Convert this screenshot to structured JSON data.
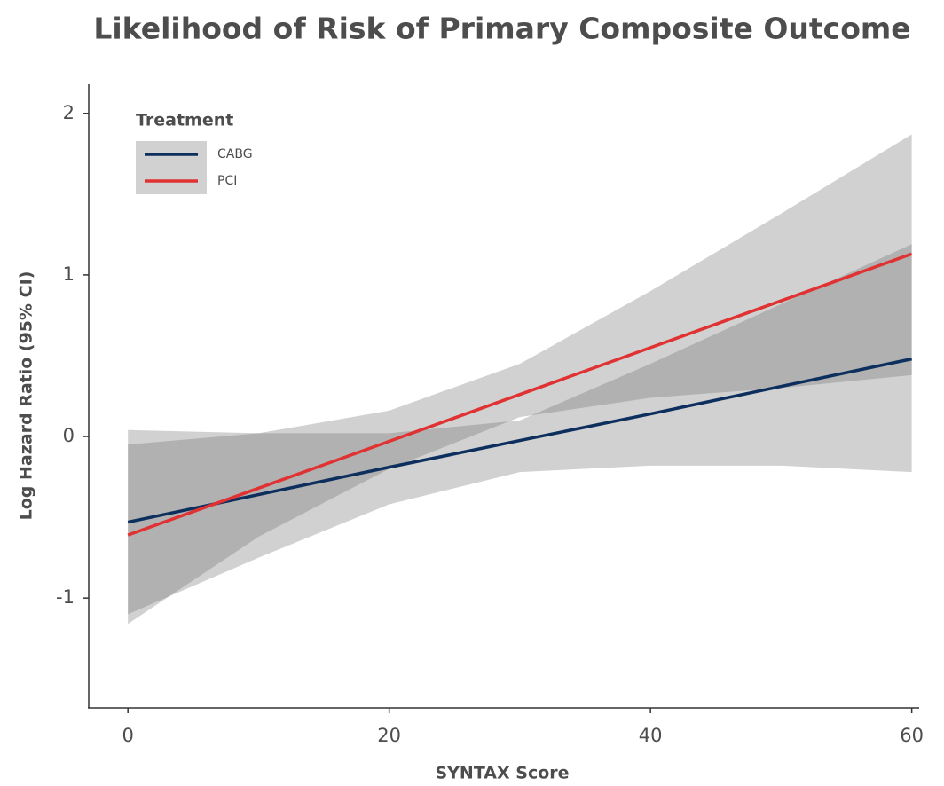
{
  "chart_data": {
    "type": "line",
    "title": "Likelihood of Risk of Primary Composite Outcome",
    "x_label": "SYNTAX Score",
    "y_label": "Log Hazard Ratio (95% CI)",
    "legend_title": "Treatment",
    "legend": "top-left",
    "x": [
      0,
      10,
      20,
      30,
      40,
      50,
      60
    ],
    "series": [
      {
        "name": "CABG",
        "color": "#0d2f5e",
        "values": [
          -0.53,
          -0.36,
          -0.19,
          -0.025,
          0.14,
          0.31,
          0.48
        ],
        "lower": [
          -1.1,
          -0.75,
          -0.42,
          -0.22,
          -0.18,
          -0.18,
          -0.22
        ],
        "upper": [
          0.04,
          0.02,
          0.02,
          0.1,
          0.45,
          0.82,
          1.19
        ]
      },
      {
        "name": "PCI",
        "color": "#e03232",
        "values": [
          -0.61,
          -0.32,
          -0.03,
          0.26,
          0.55,
          0.84,
          1.13
        ],
        "lower": [
          -1.16,
          -0.62,
          -0.2,
          0.12,
          0.24,
          0.3,
          0.38
        ],
        "upper": [
          -0.05,
          0.02,
          0.16,
          0.45,
          0.9,
          1.38,
          1.87
        ]
      }
    ],
    "ribbon_color": "#666666",
    "xlim": [
      -3,
      60.5
    ],
    "ylim": [
      -1.68,
      2.18
    ],
    "xticks": [
      0,
      20,
      40,
      60
    ],
    "yticks": [
      -1,
      0,
      1,
      2
    ],
    "grid": false
  }
}
